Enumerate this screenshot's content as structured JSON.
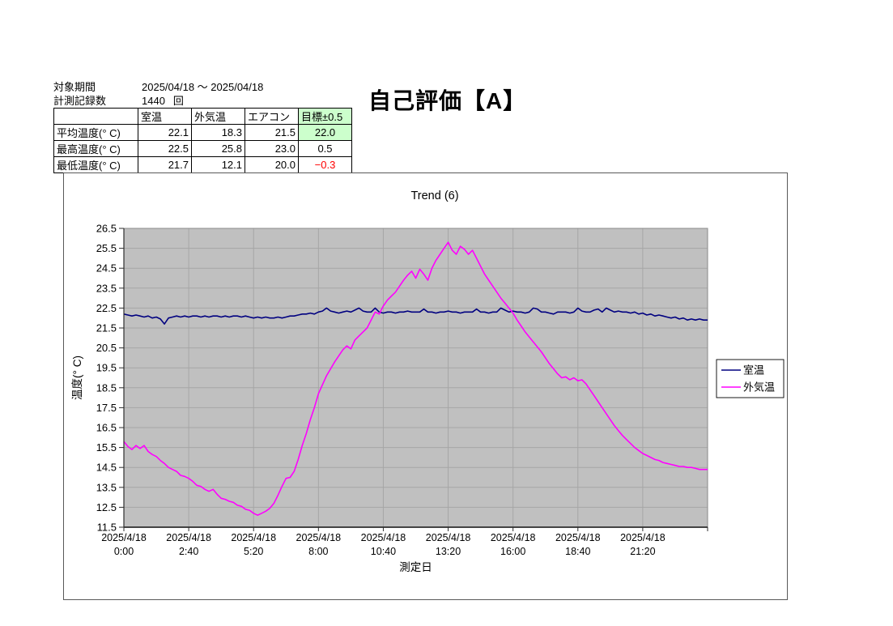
{
  "header": {
    "period_label": "対象期間",
    "period_value": "2025/04/18 ～ 2025/04/18",
    "count_label": "計測記録数",
    "count_value": "1440",
    "count_unit": "回",
    "evaluation": "自己評価【A】"
  },
  "summary_table": {
    "columns": [
      "",
      "室温",
      "外気温",
      "エアコン",
      "目標±0.5"
    ],
    "rows": [
      {
        "label": "平均温度(° C)",
        "values": [
          "22.1",
          "18.3",
          "21.5",
          "22.0"
        ]
      },
      {
        "label": "最高温度(° C)",
        "values": [
          "22.5",
          "25.8",
          "23.0",
          "0.5"
        ]
      },
      {
        "label": "最低温度(° C)",
        "values": [
          "21.7",
          "12.1",
          "20.0",
          "−0.3"
        ]
      }
    ],
    "colors": {
      "target_bg": "#ccffcc",
      "negative_text": "#ff0000"
    }
  },
  "chart_data": {
    "type": "line",
    "title": "Trend (6)",
    "xlabel": "測定日",
    "ylabel": "温度(° C)",
    "ylim": [
      11.5,
      26.5
    ],
    "y_tick_step": 1,
    "x_total_minutes": 1440,
    "x_tick_interval_minutes": 160,
    "x_tick_labels": [
      [
        "2025/4/18",
        "0:00"
      ],
      [
        "2025/4/18",
        "2:40"
      ],
      [
        "2025/4/18",
        "5:20"
      ],
      [
        "2025/4/18",
        "8:00"
      ],
      [
        "2025/4/18",
        "10:40"
      ],
      [
        "2025/4/18",
        "13:20"
      ],
      [
        "2025/4/18",
        "16:00"
      ],
      [
        "2025/4/18",
        "18:40"
      ],
      [
        "2025/4/18",
        "21:20"
      ]
    ],
    "sample_interval_minutes": 10,
    "plot_bg": "#c0c0c0",
    "grid_color": "#a6a6a6",
    "legend_position": "right",
    "grid": true,
    "series": [
      {
        "name": "室温",
        "key": "room-temp",
        "color": "#000080",
        "values": [
          22.2,
          22.15,
          22.1,
          22.15,
          22.1,
          22.05,
          22.1,
          22.0,
          22.05,
          21.95,
          21.7,
          22.0,
          22.05,
          22.1,
          22.05,
          22.1,
          22.05,
          22.1,
          22.1,
          22.05,
          22.1,
          22.05,
          22.1,
          22.1,
          22.05,
          22.1,
          22.05,
          22.1,
          22.1,
          22.05,
          22.1,
          22.05,
          22.0,
          22.05,
          22.0,
          22.05,
          22.0,
          22.0,
          22.05,
          22.0,
          22.05,
          22.1,
          22.1,
          22.15,
          22.2,
          22.2,
          22.25,
          22.2,
          22.3,
          22.35,
          22.5,
          22.35,
          22.3,
          22.25,
          22.3,
          22.35,
          22.3,
          22.4,
          22.5,
          22.35,
          22.3,
          22.3,
          22.5,
          22.3,
          22.25,
          22.3,
          22.3,
          22.25,
          22.3,
          22.3,
          22.35,
          22.3,
          22.3,
          22.3,
          22.45,
          22.3,
          22.3,
          22.25,
          22.3,
          22.3,
          22.35,
          22.3,
          22.3,
          22.25,
          22.3,
          22.3,
          22.3,
          22.45,
          22.3,
          22.3,
          22.25,
          22.3,
          22.3,
          22.5,
          22.4,
          22.3,
          22.35,
          22.3,
          22.3,
          22.25,
          22.3,
          22.5,
          22.45,
          22.3,
          22.3,
          22.25,
          22.2,
          22.3,
          22.3,
          22.3,
          22.25,
          22.3,
          22.5,
          22.35,
          22.3,
          22.3,
          22.4,
          22.45,
          22.3,
          22.5,
          22.4,
          22.3,
          22.35,
          22.3,
          22.3,
          22.25,
          22.3,
          22.2,
          22.25,
          22.15,
          22.2,
          22.1,
          22.15,
          22.1,
          22.05,
          22.0,
          22.05,
          21.95,
          22.0,
          21.9,
          21.95,
          21.9,
          21.95,
          21.9,
          21.9
        ]
      },
      {
        "name": "外気温",
        "key": "outdoor-temp",
        "color": "#ff00ff",
        "values": [
          15.8,
          15.55,
          15.4,
          15.6,
          15.45,
          15.6,
          15.3,
          15.15,
          15.05,
          14.85,
          14.7,
          14.5,
          14.4,
          14.3,
          14.1,
          14.05,
          13.95,
          13.8,
          13.6,
          13.55,
          13.4,
          13.3,
          13.4,
          13.15,
          12.95,
          12.9,
          12.8,
          12.75,
          12.6,
          12.55,
          12.4,
          12.35,
          12.2,
          12.1,
          12.2,
          12.3,
          12.45,
          12.7,
          13.1,
          13.55,
          13.95,
          14.0,
          14.3,
          14.9,
          15.6,
          16.2,
          16.9,
          17.5,
          18.2,
          18.65,
          19.1,
          19.45,
          19.8,
          20.1,
          20.4,
          20.6,
          20.45,
          20.9,
          21.1,
          21.3,
          21.5,
          21.9,
          22.3,
          22.2,
          22.6,
          22.9,
          23.1,
          23.3,
          23.6,
          23.9,
          24.15,
          24.35,
          24.0,
          24.45,
          24.2,
          23.9,
          24.5,
          24.9,
          25.2,
          25.5,
          25.8,
          25.4,
          25.2,
          25.6,
          25.45,
          25.2,
          25.4,
          25.0,
          24.6,
          24.2,
          23.9,
          23.6,
          23.3,
          23.0,
          22.75,
          22.5,
          22.25,
          21.9,
          21.6,
          21.3,
          21.05,
          20.8,
          20.55,
          20.3,
          20.0,
          19.7,
          19.45,
          19.2,
          19.0,
          19.05,
          18.9,
          19.0,
          18.85,
          18.9,
          18.7,
          18.4,
          18.1,
          17.8,
          17.5,
          17.2,
          16.9,
          16.6,
          16.35,
          16.1,
          15.9,
          15.7,
          15.5,
          15.35,
          15.2,
          15.1,
          15.0,
          14.9,
          14.85,
          14.75,
          14.7,
          14.65,
          14.6,
          14.55,
          14.55,
          14.5,
          14.5,
          14.45,
          14.4,
          14.4,
          14.4
        ]
      }
    ]
  }
}
